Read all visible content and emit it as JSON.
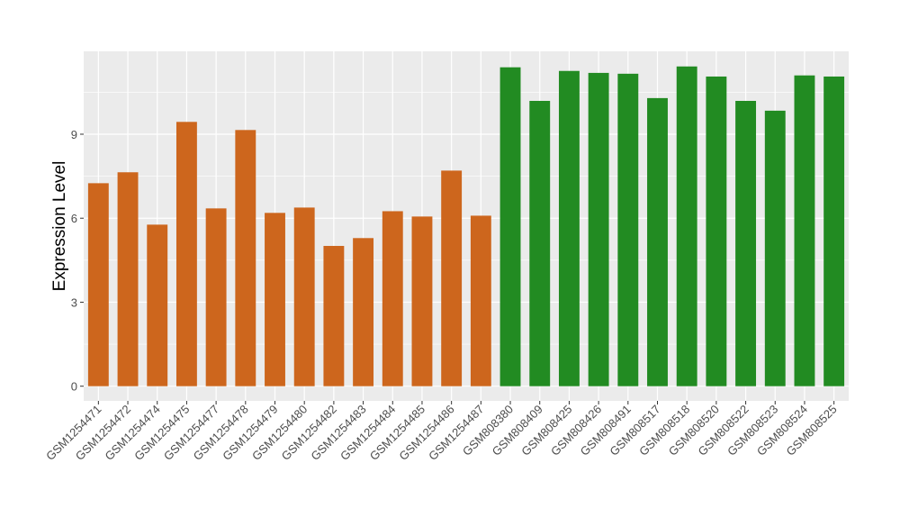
{
  "chart_data": {
    "type": "bar",
    "title": "",
    "xlabel": "",
    "ylabel": "Expression Level",
    "ylim": [
      -0.5,
      11.9
    ],
    "yticks": [
      0,
      3,
      6,
      9
    ],
    "grid": true,
    "colors": {
      "group1": "#CD661D",
      "group2": "#228B22",
      "panel": "#EBEBEB",
      "grid": "#FFFFFF"
    },
    "categories": [
      "GSM1254471",
      "GSM1254472",
      "GSM1254474",
      "GSM1254475",
      "GSM1254477",
      "GSM1254478",
      "GSM1254479",
      "GSM1254480",
      "GSM1254482",
      "GSM1254483",
      "GSM1254484",
      "GSM1254485",
      "GSM1254486",
      "GSM1254487",
      "GSM808380",
      "GSM808409",
      "GSM808425",
      "GSM808426",
      "GSM808491",
      "GSM808517",
      "GSM808518",
      "GSM808520",
      "GSM808522",
      "GSM808523",
      "GSM808524",
      "GSM808525"
    ],
    "values": [
      7.25,
      7.64,
      5.77,
      9.44,
      6.35,
      9.15,
      6.19,
      6.38,
      5.01,
      5.29,
      6.25,
      6.06,
      7.7,
      6.09,
      11.39,
      10.19,
      11.26,
      11.19,
      11.16,
      10.29,
      11.42,
      11.06,
      10.19,
      9.84,
      11.1,
      11.06
    ],
    "groups": [
      1,
      1,
      1,
      1,
      1,
      1,
      1,
      1,
      1,
      1,
      1,
      1,
      1,
      1,
      2,
      2,
      2,
      2,
      2,
      2,
      2,
      2,
      2,
      2,
      2,
      2
    ]
  }
}
